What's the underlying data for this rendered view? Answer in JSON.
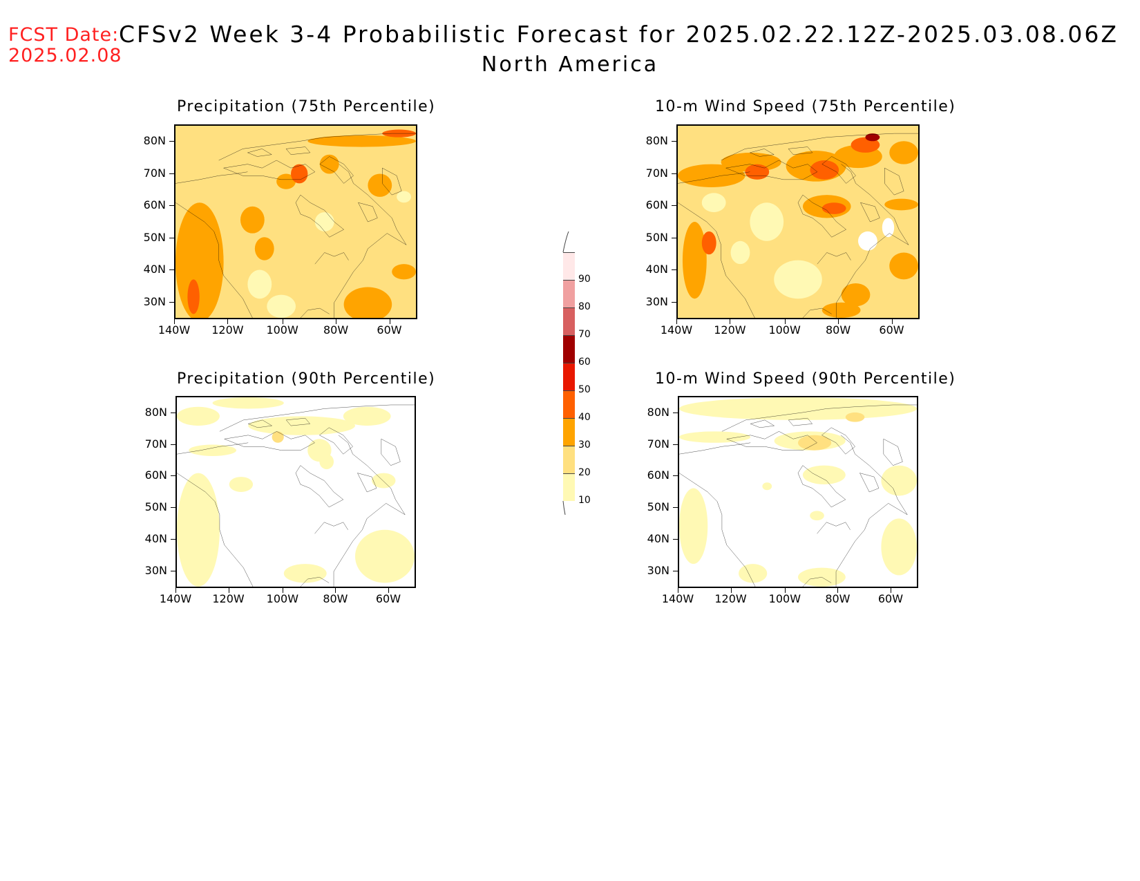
{
  "header": {
    "fcst_label": "FCST Date:",
    "fcst_date": "2025.02.08",
    "title": "CFSv2 Week 3-4 Probabilistic Forecast for 2025.02.22.12Z-2025.03.08.06Z",
    "subtitle": "North America"
  },
  "panels": [
    {
      "id": "precip75",
      "title": "Precipitation (75th Percentile)"
    },
    {
      "id": "wind75",
      "title": "10-m Wind Speed (75th Percentile)"
    },
    {
      "id": "precip90",
      "title": "Precipitation (90th Percentile)"
    },
    {
      "id": "wind90",
      "title": "10-m Wind Speed (90th Percentile)"
    }
  ],
  "axes": {
    "lat_labels": [
      "80N",
      "70N",
      "60N",
      "50N",
      "40N",
      "30N"
    ],
    "lon_labels": [
      "140W",
      "120W",
      "100W",
      "80W",
      "60W"
    ]
  },
  "colorbar": {
    "levels": [
      "10",
      "20",
      "30",
      "40",
      "50",
      "60",
      "70",
      "80",
      "90"
    ],
    "colors": [
      "#fff9b4",
      "#ffe080",
      "#ffa400",
      "#ff6000",
      "#e81800",
      "#a00000",
      "#d86060",
      "#f0a0a0",
      "#ffe8e8"
    ]
  }
}
